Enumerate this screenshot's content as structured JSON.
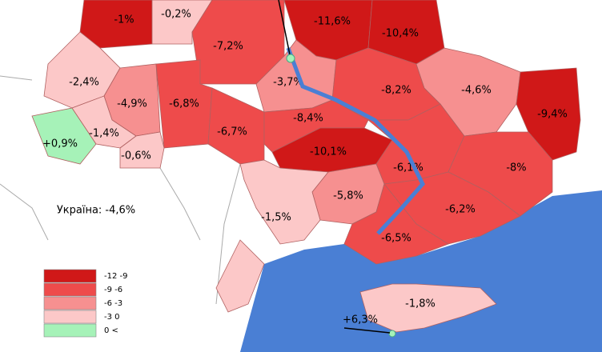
{
  "summary": "Україна: -4,6%",
  "regions": [
    "-1%",
    "-0,2%",
    "-7,2%",
    "-11,6%",
    "-10,4%",
    "-2,4%",
    "-4,9%",
    "-6,8%",
    "-3,7%",
    "-8,2%",
    "-4,6%",
    "-9,4%",
    "+0,9%",
    "-1,4%",
    "-0,6%",
    "-6,7%",
    "-8,4%",
    "-10,1%",
    "-6,1%",
    "-8%",
    "-5,8%",
    "-1,5%",
    "-6,2%",
    "-6,5%",
    "-1,8%"
  ],
  "sevastopol": "+6,3%",
  "legend": [
    "-12  -9",
    "-9  -6",
    "-6  -3",
    "-3  0",
    "0  <"
  ]
}
